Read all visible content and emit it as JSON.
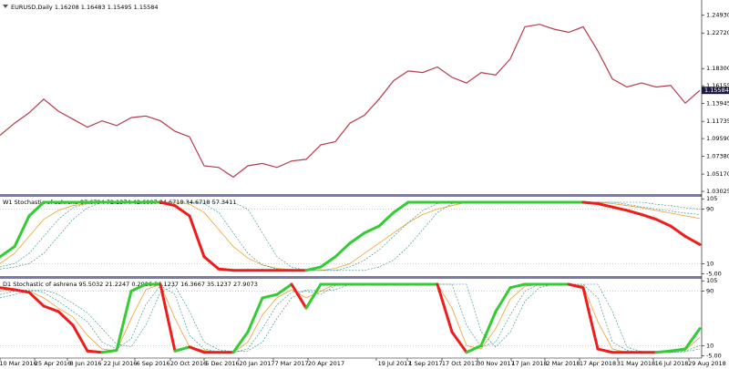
{
  "chart_data": [
    {
      "type": "line",
      "title": "EURUSD,Daily  1.16208 1.16483 1.15495 1.15584",
      "color": "#b83a4a",
      "values": [
        1.1,
        1.115,
        1.128,
        1.145,
        1.13,
        1.12,
        1.11,
        1.118,
        1.112,
        1.122,
        1.124,
        1.118,
        1.105,
        1.098,
        1.062,
        1.06,
        1.048,
        1.062,
        1.065,
        1.06,
        1.068,
        1.07,
        1.088,
        1.092,
        1.115,
        1.125,
        1.145,
        1.168,
        1.18,
        1.178,
        1.185,
        1.172,
        1.165,
        1.178,
        1.175,
        1.195,
        1.235,
        1.238,
        1.232,
        1.228,
        1.235,
        1.205,
        1.17,
        1.16,
        1.165,
        1.16,
        1.162,
        1.14,
        1.15584
      ],
      "ylim": [
        1.028,
        1.266
      ],
      "yticks": [
        {
          "value": 1.2493,
          "label": "1.24930"
        },
        {
          "value": 1.2272,
          "label": "1.22720"
        },
        {
          "value": 1.183,
          "label": "1.18300"
        },
        {
          "value": 1.16155,
          "label": "1.16155"
        },
        {
          "value": 1.13945,
          "label": "1.13945"
        },
        {
          "value": 1.11735,
          "label": "1.11735"
        },
        {
          "value": 1.0959,
          "label": "1.09590"
        },
        {
          "value": 1.0738,
          "label": "1.07380"
        },
        {
          "value": 1.0517,
          "label": "1.05170"
        },
        {
          "value": 1.03025,
          "label": "1.03025"
        }
      ],
      "last_price": {
        "value": 1.15584,
        "label": "1.15584"
      }
    },
    {
      "type": "stochastic",
      "title": "W1  Stochastic of ashrena 87.6794 72.1374 42.6007 34.6718 34.6718 57.3411",
      "ylim": [
        -7,
        108
      ],
      "yticks": [
        105,
        90,
        10,
        {
          "value": -5,
          "label": "-5.00"
        }
      ],
      "series": [
        {
          "colors": [
            "#33cc33",
            "#ee1c1c"
          ],
          "width": 3,
          "values": [
            20,
            35,
            80,
            100,
            100,
            100,
            100,
            100,
            100,
            100,
            100,
            100,
            95,
            80,
            20,
            2,
            0,
            0,
            0,
            0,
            0,
            0,
            5,
            20,
            40,
            55,
            65,
            85,
            100,
            100,
            100,
            100,
            100,
            100,
            100,
            100,
            100,
            100,
            100,
            100,
            100,
            98,
            93,
            88,
            82,
            75,
            65,
            50,
            38
          ]
        },
        {
          "color": "#f0a030",
          "width": 0.8,
          "values": [
            10,
            25,
            50,
            75,
            88,
            95,
            98,
            100,
            100,
            100,
            100,
            100,
            100,
            97,
            85,
            60,
            35,
            18,
            8,
            3,
            1,
            0,
            0,
            3,
            10,
            25,
            40,
            55,
            70,
            82,
            90,
            95,
            100,
            100,
            100,
            100,
            100,
            100,
            100,
            100,
            100,
            100,
            98,
            95,
            92,
            88,
            84,
            80,
            76
          ]
        },
        {
          "color": "#2a8a8a",
          "width": 0.6,
          "dash": true,
          "values": [
            5,
            10,
            25,
            50,
            75,
            92,
            98,
            100,
            100,
            100,
            100,
            100,
            100,
            100,
            98,
            85,
            55,
            25,
            8,
            2,
            0,
            0,
            0,
            0,
            5,
            15,
            30,
            50,
            70,
            88,
            98,
            100,
            100,
            100,
            100,
            100,
            100,
            100,
            100,
            100,
            100,
            100,
            100,
            97,
            93,
            90,
            87,
            84,
            82
          ]
        },
        {
          "color": "#2a8a8a",
          "width": 0.6,
          "dash": true,
          "values": [
            2,
            5,
            10,
            25,
            50,
            75,
            92,
            100,
            100,
            100,
            100,
            100,
            100,
            100,
            100,
            100,
            100,
            90,
            55,
            20,
            5,
            0,
            0,
            0,
            0,
            0,
            5,
            15,
            35,
            60,
            85,
            98,
            100,
            100,
            100,
            100,
            100,
            100,
            100,
            100,
            100,
            100,
            100,
            100,
            100,
            97,
            95,
            92,
            90
          ]
        }
      ]
    },
    {
      "type": "stochastic",
      "title": "D1  Stochastic of ashrena 95.5032 21.2247 0.2036 36.1237 16.3667 35.1237 27.9073",
      "ylim": [
        -7,
        108
      ],
      "yticks": [
        105,
        90,
        10,
        {
          "value": -5,
          "label": "-5.00"
        }
      ],
      "series": [
        {
          "colors": [
            "#33cc33",
            "#ee1c1c"
          ],
          "width": 3,
          "values": [
            95,
            92,
            88,
            68,
            60,
            40,
            2,
            0,
            3,
            90,
            100,
            100,
            2,
            8,
            0,
            0,
            0,
            30,
            80,
            85,
            100,
            65,
            100,
            100,
            100,
            100,
            100,
            100,
            100,
            100,
            100,
            30,
            0,
            10,
            60,
            95,
            100,
            100,
            100,
            100,
            95,
            5,
            0,
            0,
            0,
            0,
            2,
            5,
            35
          ]
        },
        {
          "color": "#f0a030",
          "width": 0.8,
          "values": [
            90,
            93,
            90,
            80,
            65,
            52,
            25,
            5,
            2,
            50,
            92,
            100,
            50,
            8,
            3,
            0,
            0,
            15,
            55,
            80,
            92,
            80,
            90,
            100,
            100,
            100,
            100,
            100,
            100,
            100,
            100,
            65,
            10,
            5,
            35,
            78,
            97,
            100,
            100,
            100,
            98,
            45,
            5,
            0,
            0,
            0,
            1,
            3,
            22
          ]
        },
        {
          "color": "#2a8a8a",
          "width": 0.6,
          "dash": true,
          "values": [
            85,
            90,
            92,
            88,
            75,
            60,
            45,
            15,
            5,
            20,
            70,
            98,
            85,
            25,
            5,
            1,
            0,
            5,
            35,
            70,
            88,
            90,
            85,
            98,
            100,
            100,
            100,
            100,
            100,
            100,
            100,
            100,
            40,
            8,
            15,
            55,
            90,
            100,
            100,
            100,
            100,
            80,
            15,
            3,
            0,
            0,
            0,
            2,
            10
          ]
        },
        {
          "color": "#2a8a8a",
          "width": 0.6,
          "dash": true,
          "values": [
            80,
            85,
            90,
            92,
            85,
            72,
            58,
            35,
            12,
            8,
            40,
            88,
            98,
            60,
            15,
            4,
            1,
            2,
            15,
            50,
            80,
            92,
            90,
            92,
            100,
            100,
            100,
            100,
            100,
            100,
            100,
            100,
            100,
            30,
            8,
            30,
            75,
            95,
            100,
            100,
            100,
            100,
            60,
            8,
            1,
            0,
            0,
            1,
            5
          ]
        }
      ]
    }
  ],
  "time_labels": [
    "10 Mar 2016",
    "25 Apr 2016",
    "8 Jun 2016",
    "22 Jul 2016",
    "6 Sep 2016",
    "20 Oct 2016",
    "5 Dec 2016",
    "20 Jan 2017",
    "7 Mar 2017",
    "20 Apr 2017",
    "19 Jul 2017",
    "1 Sep 2017",
    "17 Oct 2017",
    "30 Nov 2017",
    "17 Jan 2018",
    "2 Mar 2018",
    "17 Apr 2018",
    "31 May 2018",
    "16 Jul 2018",
    "29 Aug 2018"
  ]
}
